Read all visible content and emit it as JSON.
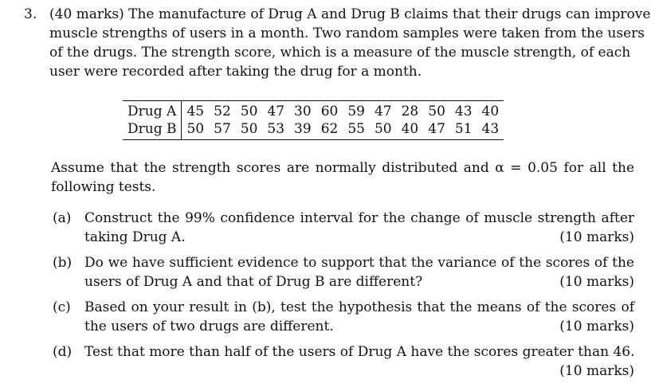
{
  "question": {
    "number": "3.",
    "intro_lines": [
      "(40 marks) The manufacture of Drug A and Drug B claims that their drugs can improve",
      "muscle strengths of users in a month. Two random samples were taken from the users",
      "of the drugs. The strength score, which is a measure of the muscle strength, of each",
      "user were recorded after taking the drug for a month."
    ]
  },
  "table": {
    "rows": [
      {
        "label": "Drug A",
        "values": [
          "45",
          "52",
          "50",
          "47",
          "30",
          "60",
          "59",
          "47",
          "28",
          "50",
          "43",
          "40"
        ]
      },
      {
        "label": "Drug B",
        "values": [
          "50",
          "57",
          "50",
          "53",
          "39",
          "62",
          "55",
          "50",
          "40",
          "47",
          "51",
          "43"
        ]
      }
    ]
  },
  "assumption": {
    "line1": "Assume that the strength scores are normally distributed and α = 0.05 for all the",
    "line2": "following tests."
  },
  "parts": [
    {
      "label": "(a)",
      "line1": "Construct the 99% confidence interval for the change of muscle strength after",
      "line2": "taking Drug A.",
      "marks": "(10 marks)"
    },
    {
      "label": "(b)",
      "line1": "Do we have sufficient evidence to support that the variance of the scores of the",
      "line2": "users of Drug A and that of Drug B are different?",
      "marks": "(10 marks)"
    },
    {
      "label": "(c)",
      "line1": "Based on your result in (b), test the hypothesis that the means of the scores of",
      "line2": "the users of two drugs are different.",
      "marks": "(10 marks)"
    },
    {
      "label": "(d)",
      "line1": "Test that more than half of the users of Drug A have the scores greater than 46.",
      "line2": "",
      "marks": "(10 marks)"
    }
  ]
}
